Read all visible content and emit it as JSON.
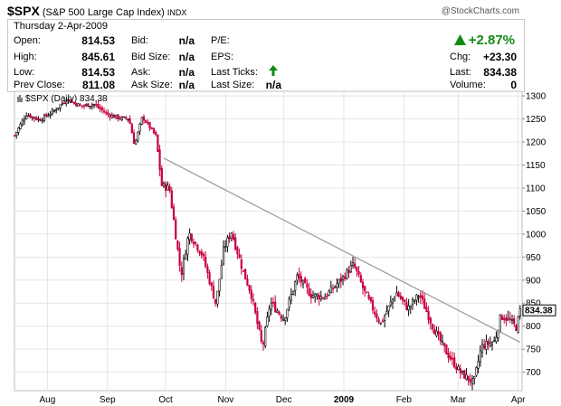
{
  "header": {
    "symbol": "$SPX",
    "name": "(S&P 500 Large Cap Index)",
    "exchange": "INDX",
    "credit": "@StockCharts.com"
  },
  "quote": {
    "date": "Thursday  2-Apr-2009",
    "open_label": "Open:",
    "open": "814.53",
    "high_label": "High:",
    "high": "845.61",
    "low_label": "Low:",
    "low": "814.53",
    "prev_close_label": "Prev Close:",
    "prev_close": "811.08",
    "bid_label": "Bid:",
    "bid": "n/a",
    "bid_size_label": "Bid Size:",
    "bid_size": "n/a",
    "ask_label": "Ask:",
    "ask": "n/a",
    "ask_size_label": "Ask Size:",
    "ask_size": "n/a",
    "pe_label": "P/E:",
    "eps_label": "EPS:",
    "last_ticks_label": "Last Ticks:",
    "last_size_label": "Last Size:",
    "last_size": "n/a",
    "change_pct": "+2.87%",
    "chg_label": "Chg:",
    "chg": "+23.30",
    "last_label": "Last:",
    "last": "834.38",
    "volume_label": "Volume:",
    "volume": "0"
  },
  "colors": {
    "up": "#000000",
    "down": "#c8003c",
    "trendline": "#9a9a9a",
    "grid": "#e4e4e4",
    "positive": "#128a12"
  },
  "chart_data": {
    "type": "candlestick",
    "legend": "$SPX (Daily) 834.38",
    "last_value_label": "834.38",
    "ylim": [
      660,
      1310
    ],
    "y_ticks": [
      700,
      750,
      800,
      850,
      900,
      950,
      1000,
      1050,
      1100,
      1150,
      1200,
      1250,
      1300
    ],
    "x_ticks": [
      "Aug",
      "Sep",
      "Oct",
      "Nov",
      "Dec",
      "2009",
      "Feb",
      "Mar",
      "Apr"
    ],
    "grid": true,
    "trendline": {
      "from": [
        "2008-09-30",
        1165
      ],
      "to": [
        "2009-04-02",
        765
      ]
    },
    "close_series": [
      [
        "2008-07-15",
        1214
      ],
      [
        "2008-07-21",
        1260
      ],
      [
        "2008-07-28",
        1248
      ],
      [
        "2008-08-04",
        1266
      ],
      [
        "2008-08-11",
        1293
      ],
      [
        "2008-08-18",
        1278
      ],
      [
        "2008-08-25",
        1282
      ],
      [
        "2008-09-01",
        1260
      ],
      [
        "2008-09-08",
        1251
      ],
      [
        "2008-09-12",
        1252
      ],
      [
        "2008-09-15",
        1193
      ],
      [
        "2008-09-19",
        1255
      ],
      [
        "2008-09-26",
        1213
      ],
      [
        "2008-09-29",
        1106
      ],
      [
        "2008-10-03",
        1099
      ],
      [
        "2008-10-09",
        910
      ],
      [
        "2008-10-13",
        1003
      ],
      [
        "2008-10-20",
        955
      ],
      [
        "2008-10-27",
        848
      ],
      [
        "2008-10-31",
        968
      ],
      [
        "2008-11-04",
        1005
      ],
      [
        "2008-11-10",
        919
      ],
      [
        "2008-11-14",
        873
      ],
      [
        "2008-11-20",
        752
      ],
      [
        "2008-11-24",
        852
      ],
      [
        "2008-12-01",
        816
      ],
      [
        "2008-12-08",
        909
      ],
      [
        "2008-12-15",
        868
      ],
      [
        "2008-12-22",
        863
      ],
      [
        "2008-12-31",
        903
      ],
      [
        "2009-01-06",
        934
      ],
      [
        "2009-01-12",
        871
      ],
      [
        "2009-01-20",
        805
      ],
      [
        "2009-01-28",
        874
      ],
      [
        "2009-02-03",
        838
      ],
      [
        "2009-02-09",
        869
      ],
      [
        "2009-02-17",
        789
      ],
      [
        "2009-02-23",
        743
      ],
      [
        "2009-03-02",
        700
      ],
      [
        "2009-03-09",
        676
      ],
      [
        "2009-03-13",
        756
      ],
      [
        "2009-03-20",
        768
      ],
      [
        "2009-03-23",
        822
      ],
      [
        "2009-03-27",
        815
      ],
      [
        "2009-03-31",
        797
      ],
      [
        "2009-04-02",
        834
      ]
    ]
  }
}
